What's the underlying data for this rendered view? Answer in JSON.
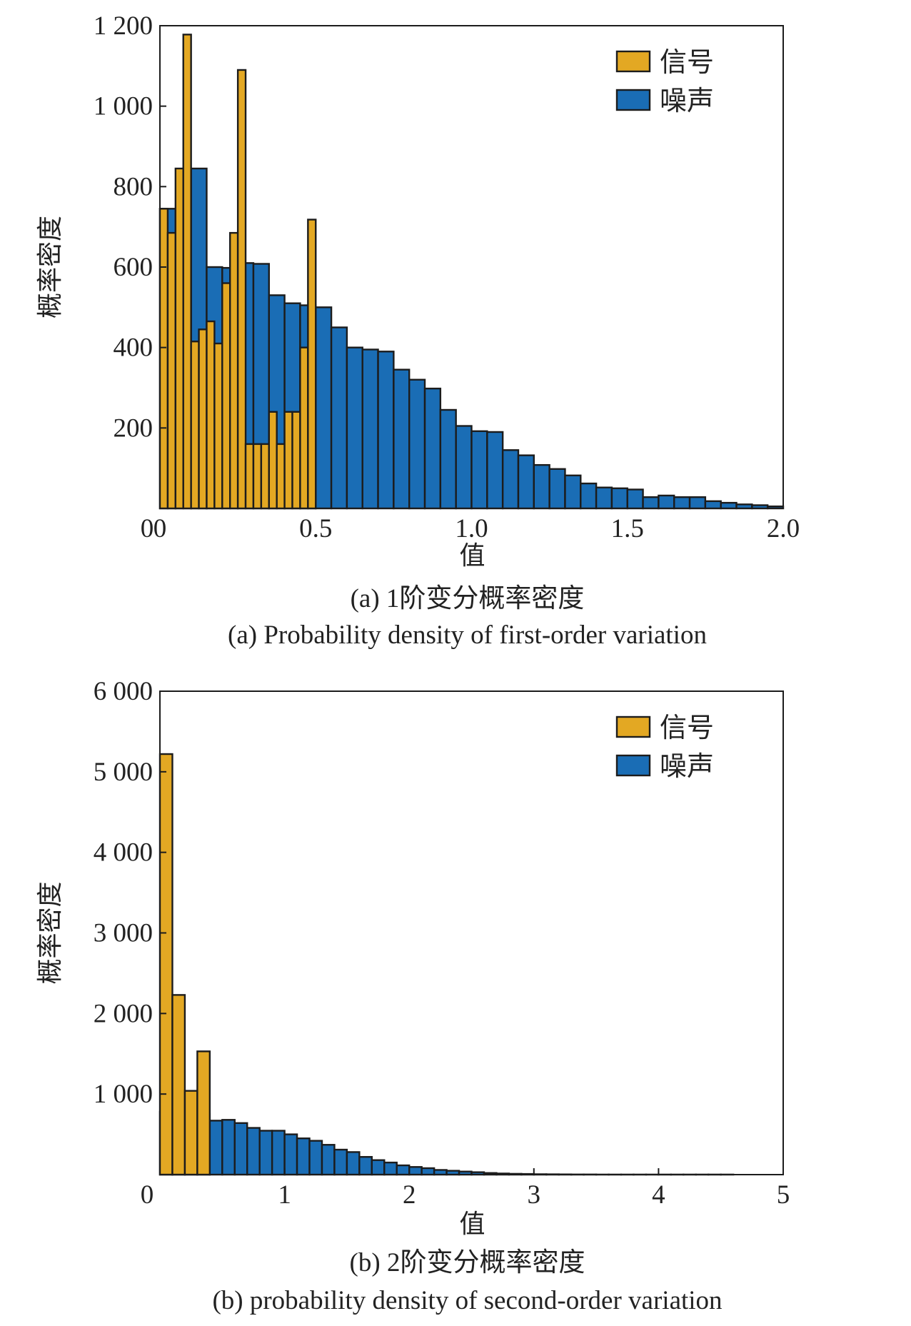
{
  "chart_data": [
    {
      "type": "bar",
      "caption_cn": "(a) 1阶变分概率密度",
      "caption_en": "(a) Probability density of first-order variation",
      "xlabel": "值",
      "ylabel": "概率密度",
      "xlim": [
        0,
        2.0
      ],
      "ylim": [
        0,
        1200
      ],
      "xticks": [
        "0",
        "0.5",
        "1.0",
        "1.5",
        "2.0"
      ],
      "yticks": [
        "200",
        "400",
        "600",
        "800",
        "1 000",
        "1 200"
      ],
      "legend_position": "top-right",
      "series": [
        {
          "name": "噪声",
          "color": "#1a6db5",
          "bin_start": 0.0,
          "bin_width": 0.05,
          "values": [
            745,
            685,
            845,
            600,
            598,
            610,
            608,
            530,
            510,
            505,
            500,
            450,
            400,
            395,
            390,
            345,
            320,
            298,
            245,
            205,
            192,
            190,
            145,
            132,
            108,
            98,
            82,
            62,
            52,
            50,
            47,
            28,
            32,
            28,
            28,
            18,
            14,
            10,
            8,
            5
          ]
        },
        {
          "name": "信号",
          "color": "#e3a823",
          "bin_start": 0.0,
          "bin_width": 0.025,
          "values": [
            745,
            685,
            845,
            1178,
            415,
            445,
            465,
            410,
            560,
            685,
            1090,
            160,
            160,
            160,
            240,
            160,
            240,
            240,
            400,
            718
          ]
        }
      ]
    },
    {
      "type": "bar",
      "caption_cn": "(b) 2阶变分概率密度",
      "caption_en": "(b) probability density of second-order variation",
      "xlabel": "值",
      "ylabel": "概率密度",
      "xlim": [
        0,
        5
      ],
      "ylim": [
        0,
        6000
      ],
      "xticks": [
        "1",
        "2",
        "3",
        "4",
        "5"
      ],
      "yticks": [
        "1 000",
        "2 000",
        "3 000",
        "4 000",
        "5 000",
        "6 000"
      ],
      "legend_position": "top-right",
      "series": [
        {
          "name": "噪声",
          "color": "#1a6db5",
          "bin_start": 0.0,
          "bin_width": 0.1,
          "values": [
            780,
            730,
            720,
            750,
            670,
            680,
            640,
            580,
            545,
            545,
            500,
            450,
            420,
            370,
            310,
            280,
            220,
            180,
            150,
            115,
            95,
            80,
            58,
            48,
            38,
            30,
            20,
            14,
            10,
            8,
            5,
            4,
            3,
            2,
            2,
            1,
            1,
            1,
            1,
            1,
            1,
            1,
            1,
            1,
            1,
            1
          ]
        },
        {
          "name": "信号",
          "color": "#e3a823",
          "bin_start": 0.0,
          "bin_width": 0.1,
          "values": [
            5220,
            2230,
            1040,
            1530
          ]
        }
      ]
    }
  ]
}
